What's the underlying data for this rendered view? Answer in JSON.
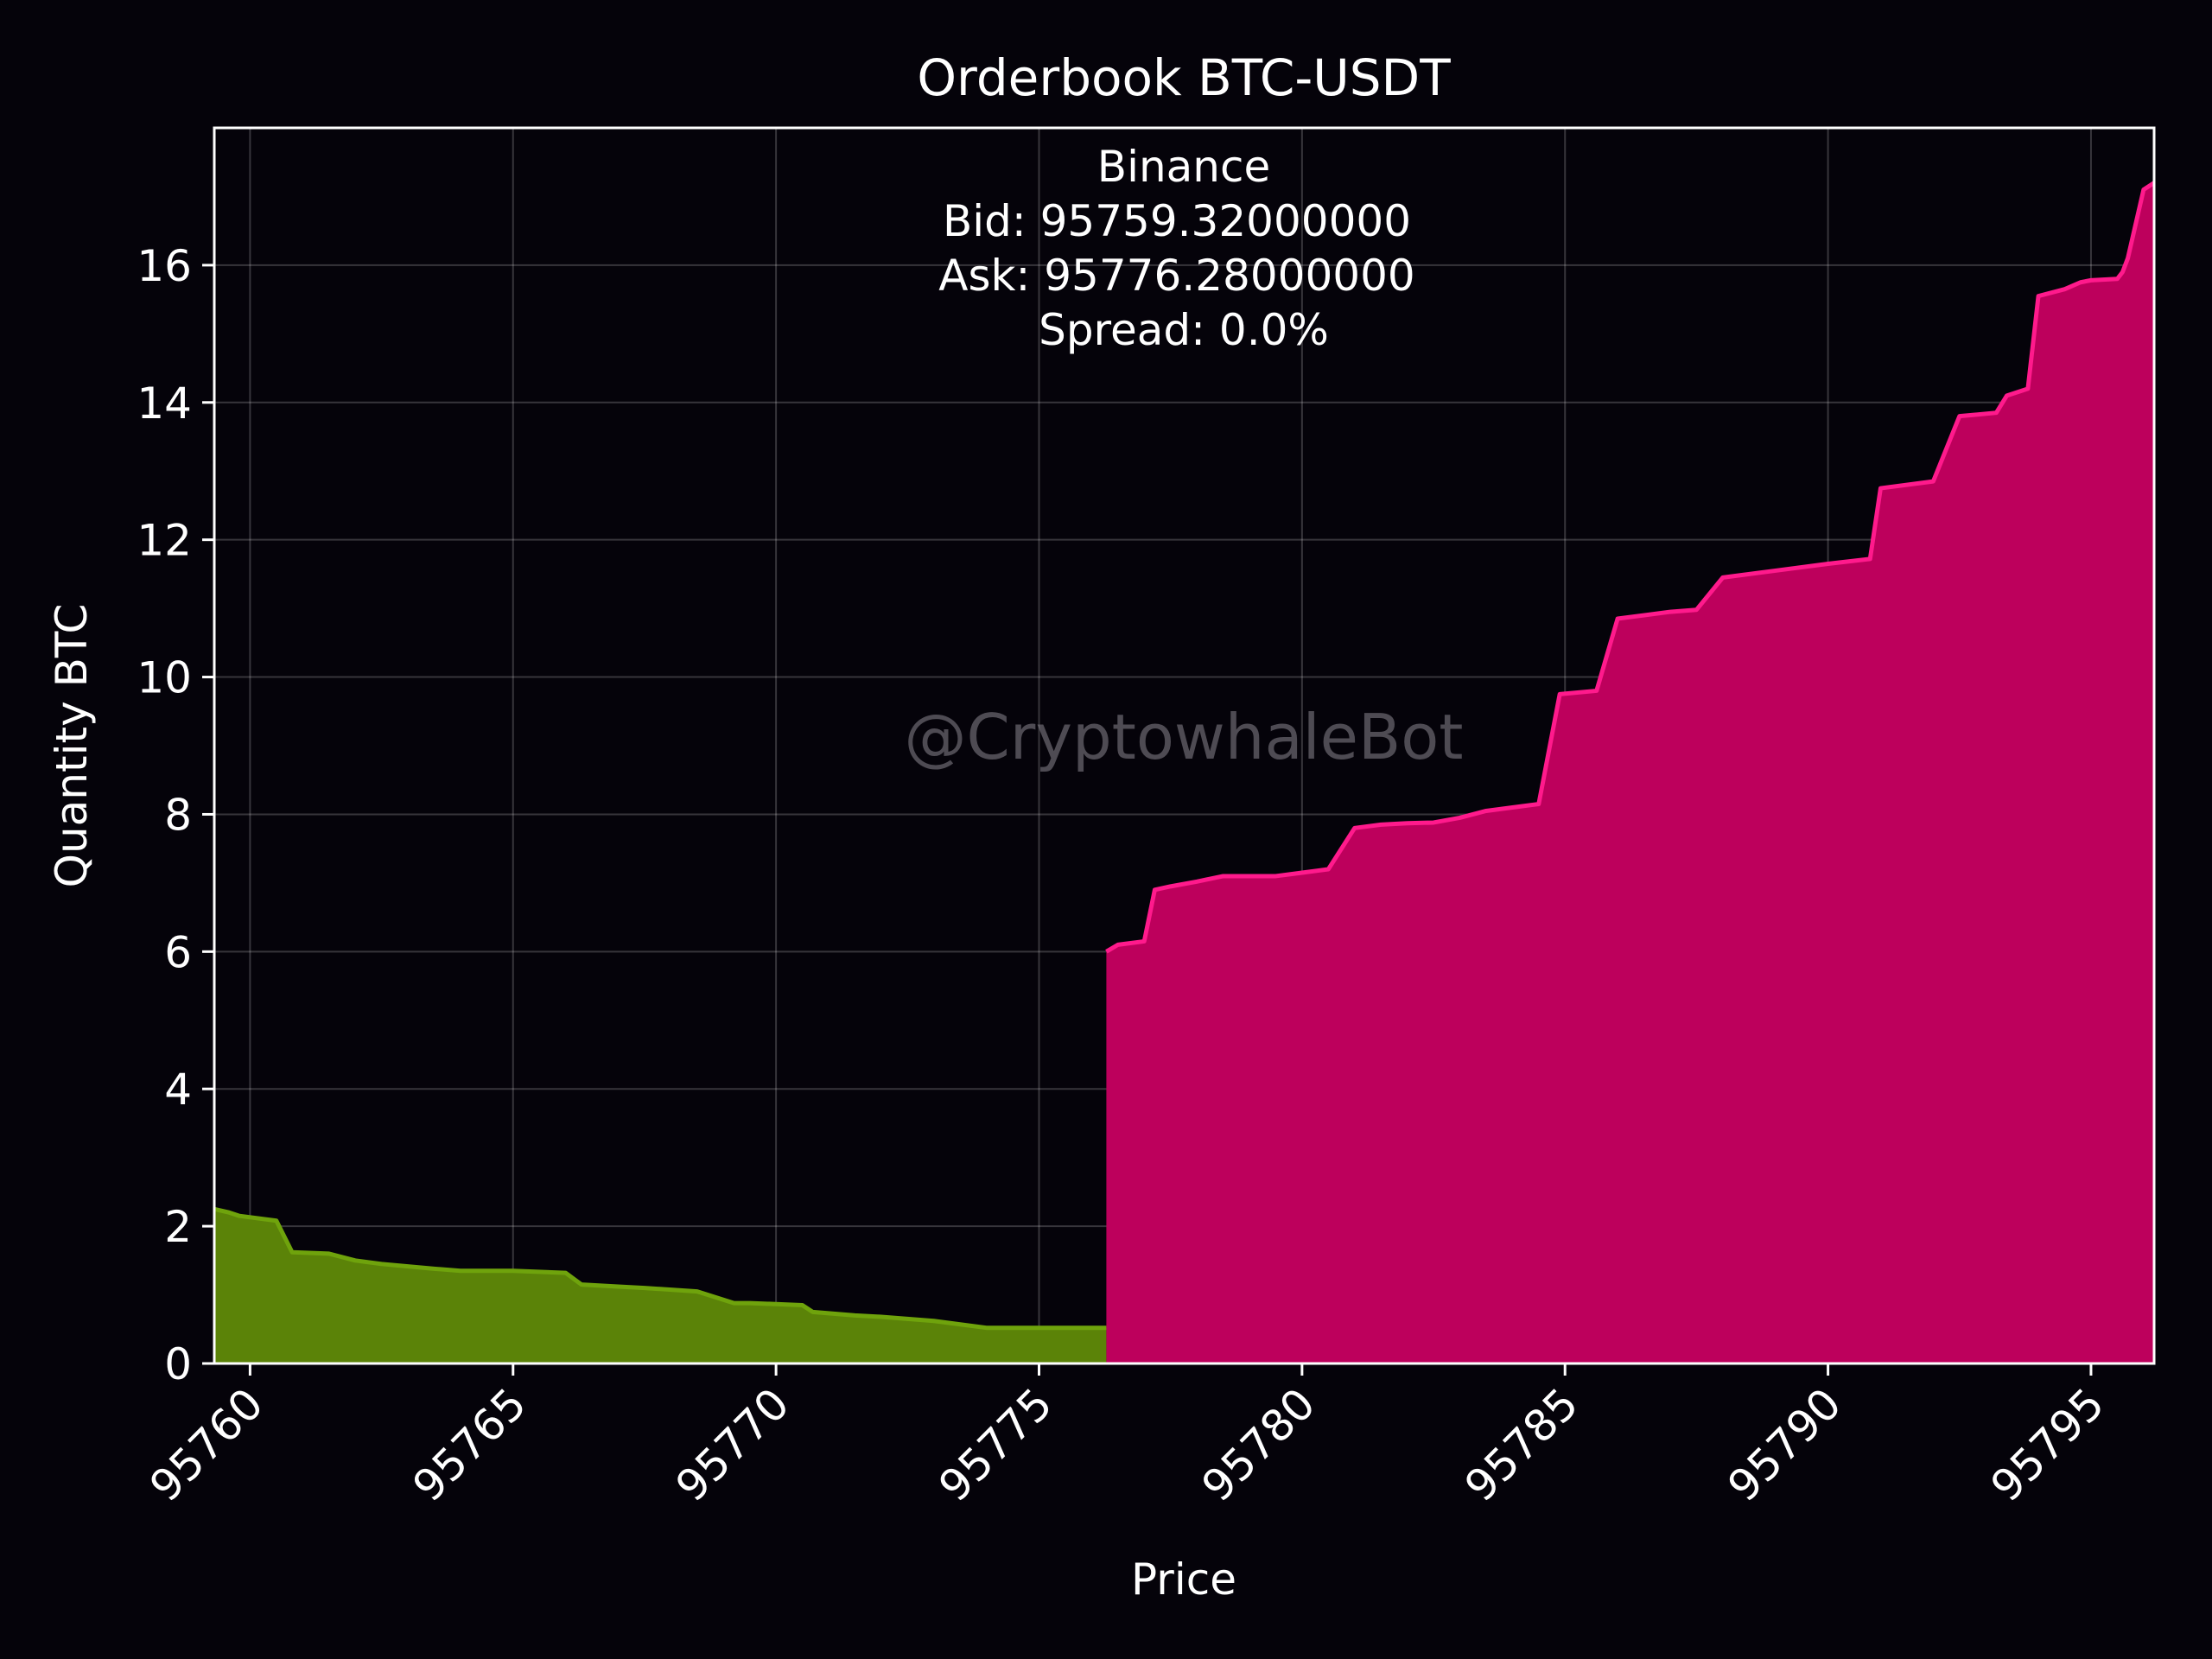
{
  "chart_data": {
    "type": "area",
    "title": "Orderbook BTC-USDT",
    "xlabel": "Price",
    "ylabel": "Quantity BTC",
    "xlim": [
      95759.32,
      95796.2
    ],
    "ylim": [
      0,
      18
    ],
    "grid": true,
    "xticks": [
      95760,
      95765,
      95770,
      95775,
      95780,
      95785,
      95790,
      95795
    ],
    "yticks": [
      0,
      2,
      4,
      6,
      8,
      10,
      12,
      14,
      16
    ],
    "info": {
      "exchange": "Binance",
      "bid": "Bid: 95759.32000000",
      "ask": "Ask: 95776.28000000",
      "spread": "Spread: 0.0%"
    },
    "watermark": "@CryptowhaleBot",
    "colors": {
      "background": "#05030a",
      "bids_fill": "#5b8308",
      "bids_line": "#6fa30c",
      "asks_fill": "#bd005c",
      "asks_line": "#ff1a8c"
    },
    "series": [
      {
        "x": [
          95759.32,
          95759.6,
          95759.8,
          95760.5,
          95760.8,
          95761.5,
          95762.0,
          95762.5,
          95763.5,
          95764.0,
          95765.0,
          95766.0,
          95766.3,
          95767.0,
          95767.5,
          95768.5,
          95769.2,
          95769.5,
          95770.5,
          95770.7,
          95771.5,
          95772.0,
          95773.0,
          95774.0,
          95776.28
        ],
        "y": [
          2.25,
          2.2,
          2.15,
          2.08,
          1.62,
          1.6,
          1.5,
          1.45,
          1.38,
          1.35,
          1.35,
          1.32,
          1.15,
          1.12,
          1.1,
          1.05,
          0.88,
          0.88,
          0.85,
          0.75,
          0.7,
          0.68,
          0.62,
          0.52,
          0.52
        ]
      },
      {
        "x": [
          95776.28,
          95776.5,
          95777.0,
          95777.2,
          95777.5,
          95778.0,
          95778.5,
          95779.5,
          95780.0,
          95780.5,
          95781.0,
          95781.5,
          95782.0,
          95782.5,
          95783.0,
          95783.5,
          95784.0,
          95784.5,
          95784.9,
          95785.6,
          95786.0,
          95787.0,
          95787.5,
          95788.0,
          95789.0,
          95790.0,
          95790.8,
          95791.0,
          95792.0,
          95792.5,
          95793.2,
          95793.4,
          95793.8,
          95794.0,
          95794.5,
          95794.8,
          95795.0,
          95795.5,
          95795.6,
          95795.7,
          95796.0,
          95796.2
        ],
        "y": [
          6.0,
          6.1,
          6.15,
          6.9,
          6.95,
          7.02,
          7.1,
          7.1,
          7.15,
          7.2,
          7.8,
          7.85,
          7.87,
          7.88,
          7.95,
          8.05,
          8.1,
          8.15,
          9.75,
          9.8,
          10.85,
          10.95,
          10.98,
          11.45,
          11.55,
          11.65,
          11.72,
          12.75,
          12.85,
          13.8,
          13.85,
          14.1,
          14.2,
          15.55,
          15.65,
          15.75,
          15.78,
          15.8,
          15.9,
          16.1,
          17.1,
          17.2
        ]
      }
    ]
  }
}
